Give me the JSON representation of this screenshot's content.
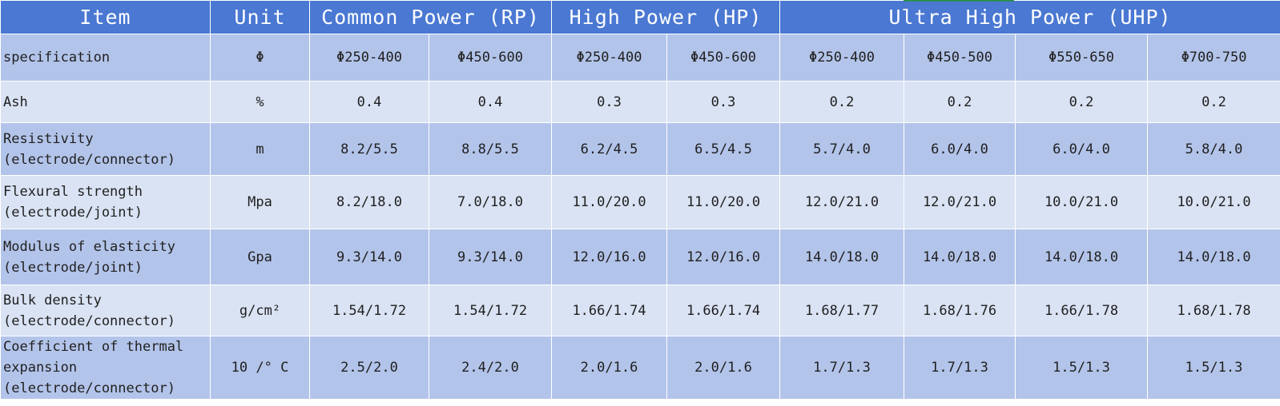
{
  "header": {
    "item": "Item",
    "unit": "Unit",
    "rp": "Common Power (RP)",
    "hp": "High Power (HP)",
    "uhp": "Ultra High Power (UHP)"
  },
  "colors": {
    "header_bg": "#4a78d2",
    "row_dark": "#b3c4ea",
    "row_light": "#dae3f4",
    "accent_green": "#2e8b57"
  },
  "rows": [
    {
      "item": [
        "specification"
      ],
      "unit": "Φ",
      "values": [
        "Φ250-400",
        "Φ450-600",
        "Φ250-400",
        "Φ450-600",
        "Φ250-400",
        "Φ450-500",
        "Φ550-650",
        "Φ700-750"
      ]
    },
    {
      "item": [
        "Ash"
      ],
      "unit": "%",
      "values": [
        "0.4",
        "0.4",
        "0.3",
        "0.3",
        "0.2",
        "0.2",
        "0.2",
        "0.2"
      ]
    },
    {
      "item": [
        "Resistivity",
        "(electrode/connector)"
      ],
      "unit": "m",
      "values": [
        "8.2/5.5",
        "8.8/5.5",
        "6.2/4.5",
        "6.5/4.5",
        "5.7/4.0",
        "6.0/4.0",
        "6.0/4.0",
        "5.8/4.0"
      ]
    },
    {
      "item": [
        "Flexural strength",
        "(electrode/joint)"
      ],
      "unit": "Mpa",
      "values": [
        "8.2/18.0",
        "7.0/18.0",
        "11.0/20.0",
        "11.0/20.0",
        "12.0/21.0",
        "12.0/21.0",
        "10.0/21.0",
        "10.0/21.0"
      ]
    },
    {
      "item": [
        "Modulus of elasticity",
        "(electrode/joint)"
      ],
      "unit": "Gpa",
      "values": [
        "9.3/14.0",
        "9.3/14.0",
        "12.0/16.0",
        "12.0/16.0",
        "14.0/18.0",
        "14.0/18.0",
        "14.0/18.0",
        "14.0/18.0"
      ]
    },
    {
      "item": [
        "Bulk density",
        "(electrode/connector)"
      ],
      "unit": "g/cm²",
      "values": [
        "1.54/1.72",
        "1.54/1.72",
        "1.66/1.74",
        "1.66/1.74",
        "1.68/1.77",
        "1.68/1.76",
        "1.66/1.78",
        "1.68/1.78"
      ]
    },
    {
      "item": [
        "Coefficient of thermal",
        "expansion",
        "(electrode/connector)"
      ],
      "unit": "10 /° C",
      "values": [
        "2.5/2.0",
        "2.4/2.0",
        "2.0/1.6",
        "2.0/1.6",
        "1.7/1.3",
        "1.7/1.3",
        "1.5/1.3",
        "1.5/1.3"
      ]
    }
  ]
}
